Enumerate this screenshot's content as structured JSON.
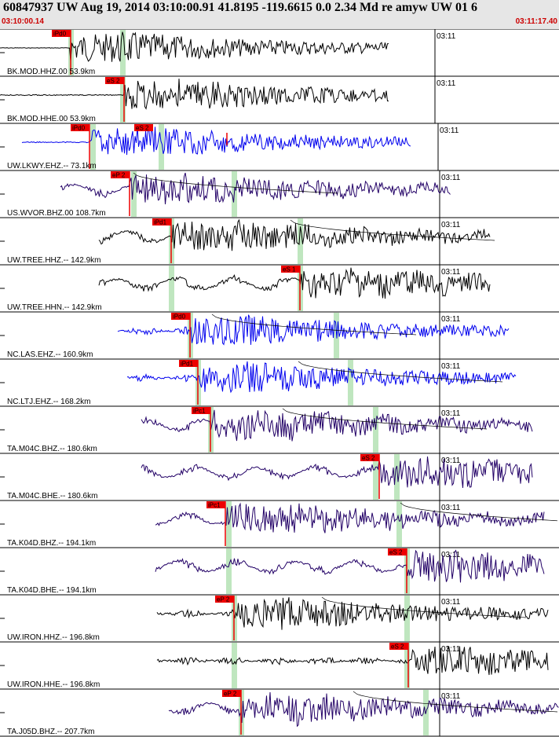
{
  "header": {
    "title": "60847937 UW Aug 19, 2014 03:10:00.91   41.8195 -119.6615  0.0 2.34 Md re amyw UW 01   6",
    "start_time": "03:10:00.14",
    "end_time": "03:11:17.40"
  },
  "time_marker": "03:11",
  "colors": {
    "black": "#000000",
    "blue": "#0000ee",
    "navy": "#220066",
    "pick_red": "#ee0000",
    "pick_green": "#bfe6bf"
  },
  "traces": [
    {
      "label": "BK.MOD.HHZ.00 53.9km",
      "color": "black",
      "pick": "iPd0",
      "trace_start": 0.0,
      "trace_end": 0.7
    },
    {
      "label": "BK.MOD.HHE.00 53.9km",
      "color": "black",
      "pick": "eS 2",
      "trace_start": 0.0,
      "trace_end": 0.7
    },
    {
      "label": "UW.LKWY.EHZ.-- 73.1km",
      "color": "blue",
      "pick": "iPd0",
      "pick2": "eS 2",
      "trace_start": 0.04,
      "trace_end": 0.74
    },
    {
      "label": "US.WVOR.BHZ.00 108.7km",
      "color": "navy",
      "pick": "eP 2",
      "trace_start": 0.11,
      "trace_end": 0.81
    },
    {
      "label": "UW.TREE.HHZ.-- 142.9km",
      "color": "black",
      "pick": "iPd1",
      "trace_start": 0.18,
      "trace_end": 0.88
    },
    {
      "label": "UW.TREE.HHN.-- 142.9km",
      "color": "black",
      "pick": "eS 1",
      "trace_start": 0.18,
      "trace_end": 0.88
    },
    {
      "label": "NC.LAS.EHZ.-- 160.9km",
      "color": "blue",
      "pick": "iPd0",
      "trace_start": 0.21,
      "trace_end": 0.91
    },
    {
      "label": "NC.LTJ.EHZ.-- 168.2km",
      "color": "blue",
      "pick": "iPd1",
      "trace_start": 0.23,
      "trace_end": 0.93
    },
    {
      "label": "TA.M04C.BHZ.-- 180.6km",
      "color": "navy",
      "pick": "iPc1",
      "trace_start": 0.25,
      "trace_end": 0.95
    },
    {
      "label": "TA.M04C.BHE.-- 180.6km",
      "color": "navy",
      "pick": "eS 2",
      "trace_start": 0.25,
      "trace_end": 0.95
    },
    {
      "label": "TA.K04D.BHZ.-- 194.1km",
      "color": "navy",
      "pick": "iPc1",
      "trace_start": 0.28,
      "trace_end": 0.98
    },
    {
      "label": "TA.K04D.BHE.-- 194.1km",
      "color": "navy",
      "pick": "eS 2",
      "trace_start": 0.28,
      "trace_end": 0.98
    },
    {
      "label": "UW.IRON.HHZ.-- 196.8km",
      "color": "black",
      "pick": "eP 2",
      "trace_start": 0.28,
      "trace_end": 0.98
    },
    {
      "label": "UW.IRON.HHE.-- 196.8km",
      "color": "black",
      "pick": "eS 2",
      "trace_start": 0.28,
      "trace_end": 0.98
    },
    {
      "label": "TA.J05D.BHZ.-- 207.7km",
      "color": "navy",
      "pick": "eP 2",
      "trace_start": 0.3,
      "trace_end": 1.0
    }
  ]
}
